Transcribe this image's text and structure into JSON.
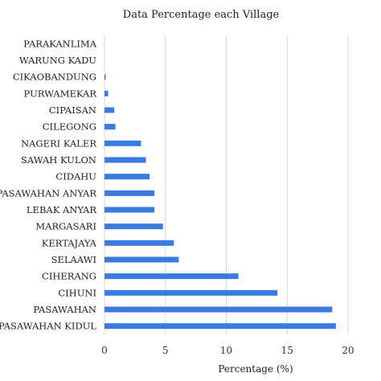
{
  "chart_data": {
    "type": "bar",
    "orientation": "horizontal",
    "title": "Data Percentage each Village",
    "xlabel": "Percentage (%)",
    "ylabel": "",
    "xlim": [
      0,
      20
    ],
    "xticks": [
      0,
      5,
      10,
      15,
      20
    ],
    "grid": "vertical",
    "legend": "none",
    "bar_color": "#3a7be0",
    "categories": [
      "PARAKANLIMA",
      "WARUNG KADU",
      "CIKAOBANDUNG",
      "PURWAMEKAR",
      "CIPAISAN",
      "CILEGONG",
      "NAGERI KALER",
      "SAWAH KULON",
      "CIDAHU",
      "PASAWAHAN ANYAR",
      "LEBAK ANYAR",
      "MARGASARI",
      "KERTAJAYA",
      "SELAAWI",
      "CIHERANG",
      "CIHUNI",
      "PASAWAHAN",
      "PASAWAHAN KIDUL"
    ],
    "values": [
      0,
      0,
      0.1,
      0.3,
      0.8,
      0.9,
      3.0,
      3.4,
      3.7,
      4.1,
      4.1,
      4.8,
      5.7,
      6.1,
      11.0,
      14.2,
      18.7,
      19.0
    ]
  }
}
